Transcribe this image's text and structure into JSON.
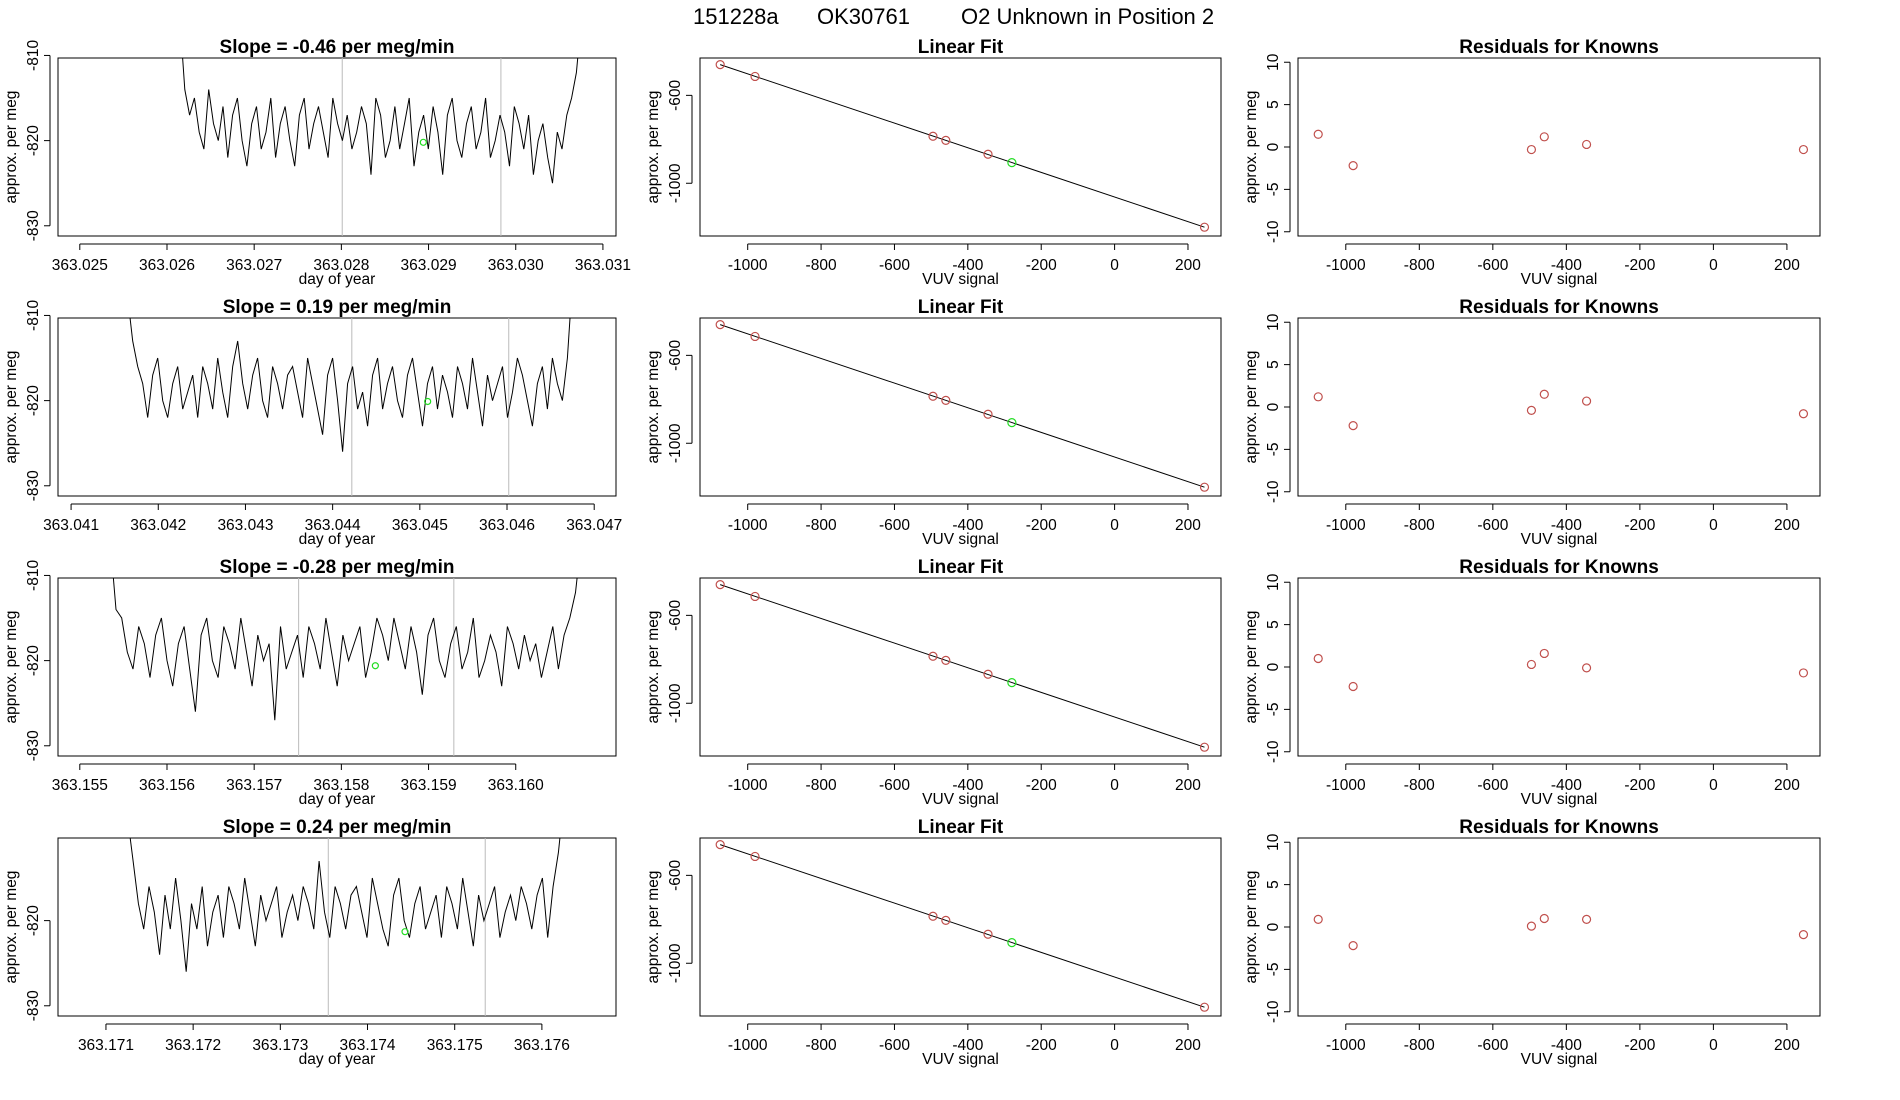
{
  "title": {
    "run": "151228a",
    "tank": "OK30761",
    "description": "O2 Unknown in Position  2"
  },
  "colors": {
    "trace": "#000000",
    "point": "#c0504d",
    "highlight": "#22dd22",
    "vline": "#bbbbbb"
  },
  "chart_data": [
    {
      "type": "line",
      "row": 0,
      "panel": "timeseries",
      "title_prefix": "Slope = ",
      "slope": " -0.46",
      "title_suffix": "  per meg/min",
      "xlabel": "day of year",
      "ylabel": "approx. per meg",
      "xlim": [
        363.02475,
        363.03115
      ],
      "ylim": [
        -831.2,
        -810.3
      ],
      "xticks": [
        "363.025",
        "363.026",
        "363.027",
        "363.028",
        "363.029",
        "363.030",
        "363.031"
      ],
      "yticks": [
        "-810",
        "-820",
        "-830"
      ],
      "vlines": [
        363.02801,
        363.02983
      ],
      "highlight": {
        "x": 363.02894,
        "y": -820.2
      },
      "series": {
        "name": "trace",
        "x_start": 363.02615,
        "x_end": 363.03075,
        "values": [
          -806,
          -814,
          -817,
          -815,
          -819,
          -821,
          -814,
          -818,
          -820,
          -816,
          -822,
          -817,
          -815,
          -820,
          -823,
          -818,
          -816,
          -821,
          -819,
          -815,
          -822,
          -818,
          -816,
          -820,
          -823,
          -817,
          -815,
          -821,
          -818,
          -816,
          -819,
          -822,
          -815,
          -818,
          -820,
          -817,
          -821,
          -819,
          -816,
          -818,
          -824,
          -815,
          -817,
          -822,
          -820,
          -816,
          -821,
          -818,
          -815,
          -823,
          -819,
          -817,
          -821,
          -816,
          -819,
          -824,
          -817,
          -815,
          -820,
          -822,
          -818,
          -816,
          -821,
          -819,
          -815,
          -822,
          -820,
          -817,
          -819,
          -823,
          -816,
          -818,
          -821,
          -817,
          -824,
          -820,
          -818,
          -822,
          -825,
          -819,
          -821,
          -817,
          -815,
          -812,
          -806
        ]
      }
    },
    {
      "type": "line",
      "row": 1,
      "panel": "timeseries",
      "title_prefix": "Slope = ",
      "slope": " 0.19",
      "title_suffix": "  per meg/min",
      "xlabel": "day of year",
      "ylabel": "approx. per meg",
      "xlim": [
        363.04085,
        363.04725
      ],
      "ylim": [
        -831.2,
        -810.3
      ],
      "xticks": [
        "363.041",
        "363.042",
        "363.043",
        "363.044",
        "363.045",
        "363.046",
        "363.047"
      ],
      "yticks": [
        "-810",
        "-820",
        "-830"
      ],
      "vlines": [
        363.04422,
        363.04602
      ],
      "highlight": {
        "x": 363.04509,
        "y": -820.1
      },
      "series": {
        "name": "trace",
        "x_start": 363.04165,
        "x_end": 363.04675,
        "values": [
          -808,
          -813,
          -816,
          -818,
          -822,
          -817,
          -815,
          -820,
          -822,
          -818,
          -816,
          -821,
          -819,
          -817,
          -822,
          -816,
          -818,
          -821,
          -815,
          -819,
          -822,
          -816,
          -813,
          -818,
          -821,
          -817,
          -815,
          -820,
          -822,
          -816,
          -818,
          -821,
          -817,
          -816,
          -819,
          -822,
          -815,
          -818,
          -821,
          -824,
          -817,
          -815,
          -820,
          -826,
          -818,
          -816,
          -821,
          -819,
          -823,
          -817,
          -815,
          -821,
          -818,
          -816,
          -820,
          -822,
          -817,
          -815,
          -819,
          -823,
          -818,
          -816,
          -821,
          -817,
          -819,
          -822,
          -816,
          -818,
          -821,
          -815,
          -819,
          -823,
          -817,
          -820,
          -818,
          -816,
          -822,
          -819,
          -815,
          -817,
          -820,
          -823,
          -818,
          -816,
          -821,
          -815,
          -818,
          -820,
          -815,
          -806
        ]
      }
    },
    {
      "type": "line",
      "row": 2,
      "panel": "timeseries",
      "title_prefix": "Slope = ",
      "slope": " -0.28",
      "title_suffix": "  per meg/min",
      "xlabel": "day of year",
      "ylabel": "approx. per meg",
      "xlim": [
        363.15475,
        363.16115
      ],
      "ylim": [
        -831.2,
        -810.3
      ],
      "xticks": [
        "363.155",
        "363.156",
        "363.157",
        "363.158",
        "363.159",
        "363.160"
      ],
      "yticks": [
        "-810",
        "-820",
        "-830"
      ],
      "vlines": [
        363.15751,
        363.15929
      ],
      "highlight": {
        "x": 363.15839,
        "y": -820.6
      },
      "series": {
        "name": "trace",
        "x_start": 363.15535,
        "x_end": 363.16075,
        "values": [
          -806,
          -814,
          -815,
          -819,
          -821,
          -816,
          -818,
          -822,
          -817,
          -815,
          -820,
          -823,
          -818,
          -816,
          -821,
          -826,
          -817,
          -815,
          -820,
          -822,
          -816,
          -818,
          -821,
          -815,
          -819,
          -823,
          -817,
          -820,
          -818,
          -827,
          -816,
          -821,
          -819,
          -817,
          -822,
          -816,
          -818,
          -821,
          -815,
          -819,
          -823,
          -817,
          -820,
          -818,
          -816,
          -822,
          -819,
          -815,
          -817,
          -820,
          -815,
          -818,
          -821,
          -816,
          -819,
          -824,
          -817,
          -815,
          -820,
          -822,
          -818,
          -816,
          -821,
          -819,
          -815,
          -822,
          -820,
          -817,
          -819,
          -823,
          -816,
          -818,
          -821,
          -817,
          -820,
          -818,
          -822,
          -819,
          -816,
          -821,
          -817,
          -815,
          -812,
          -806
        ]
      }
    },
    {
      "type": "line",
      "row": 3,
      "panel": "timeseries",
      "title_prefix": "Slope = ",
      "slope": " 0.24",
      "title_suffix": "  per meg/min",
      "xlabel": "day of year",
      "ylabel": "approx. per meg",
      "xlim": [
        363.17045,
        363.17685
      ],
      "ylim": [
        -831.2,
        -810.3
      ],
      "xticks": [
        "363.171",
        "363.172",
        "363.173",
        "363.174",
        "363.175",
        "363.176"
      ],
      "yticks": [
        "-820",
        "-830"
      ],
      "vlines": [
        363.17355,
        363.17535
      ],
      "highlight": {
        "x": 363.17443,
        "y": -821.3
      },
      "series": {
        "name": "trace",
        "x_start": 363.17125,
        "x_end": 363.17625,
        "values": [
          -808,
          -813,
          -818,
          -821,
          -816,
          -819,
          -824,
          -817,
          -821,
          -815,
          -820,
          -826,
          -818,
          -821,
          -816,
          -823,
          -819,
          -817,
          -822,
          -816,
          -818,
          -821,
          -815,
          -819,
          -823,
          -817,
          -820,
          -818,
          -816,
          -822,
          -819,
          -817,
          -820,
          -816,
          -818,
          -821,
          -813,
          -819,
          -822,
          -816,
          -818,
          -821,
          -817,
          -816,
          -819,
          -822,
          -815,
          -818,
          -821,
          -823,
          -817,
          -815,
          -820,
          -822,
          -818,
          -816,
          -821,
          -819,
          -817,
          -822,
          -816,
          -818,
          -821,
          -815,
          -819,
          -823,
          -817,
          -820,
          -818,
          -816,
          -822,
          -819,
          -817,
          -820,
          -816,
          -818,
          -821,
          -817,
          -815,
          -822,
          -816,
          -812,
          -806
        ]
      }
    },
    {
      "type": "scatter",
      "row": 0,
      "panel": "fit",
      "title": "Linear Fit",
      "xlabel": "VUV signal",
      "ylabel": "approx. per meg",
      "xlim": [
        -1130,
        290
      ],
      "ylim": [
        -1240,
        -430
      ],
      "xticks": [
        "-1000",
        "-800",
        "-600",
        "-400",
        "-200",
        "0",
        "200"
      ],
      "yticks": [
        "-600",
        "-1000"
      ],
      "fit_line": {
        "x": [
          -1075,
          245
        ],
        "y": [
          -460,
          -1200
        ]
      },
      "points": {
        "x": [
          -1075,
          -980,
          -495,
          -460,
          -345,
          245
        ],
        "y": [
          -460,
          -514,
          -786,
          -805,
          -868,
          -1200
        ]
      },
      "highlight": {
        "x": -280,
        "y": -906
      }
    },
    {
      "type": "scatter",
      "row": 1,
      "panel": "fit",
      "title": "Linear Fit",
      "xlabel": "VUV signal",
      "ylabel": "approx. per meg",
      "xlim": [
        -1130,
        290
      ],
      "ylim": [
        -1240,
        -430
      ],
      "xticks": [
        "-1000",
        "-800",
        "-600",
        "-400",
        "-200",
        "0",
        "200"
      ],
      "yticks": [
        "-600",
        "-1000"
      ],
      "fit_line": {
        "x": [
          -1075,
          245
        ],
        "y": [
          -460,
          -1200
        ]
      },
      "points": {
        "x": [
          -1075,
          -980,
          -495,
          -460,
          -345,
          245
        ],
        "y": [
          -460,
          -514,
          -786,
          -805,
          -868,
          -1200
        ]
      },
      "highlight": {
        "x": -280,
        "y": -906
      }
    },
    {
      "type": "scatter",
      "row": 2,
      "panel": "fit",
      "title": "Linear Fit",
      "xlabel": "VUV signal",
      "ylabel": "approx. per meg",
      "xlim": [
        -1130,
        290
      ],
      "ylim": [
        -1240,
        -430
      ],
      "xticks": [
        "-1000",
        "-800",
        "-600",
        "-400",
        "-200",
        "0",
        "200"
      ],
      "yticks": [
        "-600",
        "-1000"
      ],
      "fit_line": {
        "x": [
          -1075,
          245
        ],
        "y": [
          -460,
          -1200
        ]
      },
      "points": {
        "x": [
          -1075,
          -980,
          -495,
          -460,
          -345,
          245
        ],
        "y": [
          -460,
          -514,
          -786,
          -805,
          -868,
          -1200
        ]
      },
      "highlight": {
        "x": -280,
        "y": -906
      }
    },
    {
      "type": "scatter",
      "row": 3,
      "panel": "fit",
      "title": "Linear Fit",
      "xlabel": "VUV signal",
      "ylabel": "approx. per meg",
      "xlim": [
        -1130,
        290
      ],
      "ylim": [
        -1240,
        -430
      ],
      "xticks": [
        "-1000",
        "-800",
        "-600",
        "-400",
        "-200",
        "0",
        "200"
      ],
      "yticks": [
        "-600",
        "-1000"
      ],
      "fit_line": {
        "x": [
          -1075,
          245
        ],
        "y": [
          -460,
          -1200
        ]
      },
      "points": {
        "x": [
          -1075,
          -980,
          -495,
          -460,
          -345,
          245
        ],
        "y": [
          -460,
          -514,
          -786,
          -805,
          -868,
          -1200
        ]
      },
      "highlight": {
        "x": -280,
        "y": -906
      }
    },
    {
      "type": "scatter",
      "row": 0,
      "panel": "residuals",
      "title": "Residuals for Knowns",
      "xlabel": "VUV signal",
      "ylabel": "approx. per meg",
      "xlim": [
        -1130,
        290
      ],
      "ylim": [
        -10.5,
        10.5
      ],
      "xticks": [
        "-1000",
        "-800",
        "-600",
        "-400",
        "-200",
        "0",
        "200"
      ],
      "yticks": [
        "10",
        "5",
        "0",
        "-5",
        "-10"
      ],
      "points": {
        "x": [
          -1075,
          -980,
          -495,
          -460,
          -345,
          245
        ],
        "y": [
          1.5,
          -2.2,
          -0.3,
          1.2,
          0.3,
          -0.3
        ]
      }
    },
    {
      "type": "scatter",
      "row": 1,
      "panel": "residuals",
      "title": "Residuals for Knowns",
      "xlabel": "VUV signal",
      "ylabel": "approx. per meg",
      "xlim": [
        -1130,
        290
      ],
      "ylim": [
        -10.5,
        10.5
      ],
      "xticks": [
        "-1000",
        "-800",
        "-600",
        "-400",
        "-200",
        "0",
        "200"
      ],
      "yticks": [
        "10",
        "5",
        "0",
        "-5",
        "-10"
      ],
      "points": {
        "x": [
          -1075,
          -980,
          -495,
          -460,
          -345,
          245
        ],
        "y": [
          1.2,
          -2.2,
          -0.4,
          1.5,
          0.7,
          -0.8
        ]
      }
    },
    {
      "type": "scatter",
      "row": 2,
      "panel": "residuals",
      "title": "Residuals for Knowns",
      "xlabel": "VUV signal",
      "ylabel": "approx. per meg",
      "xlim": [
        -1130,
        290
      ],
      "ylim": [
        -10.5,
        10.5
      ],
      "xticks": [
        "-1000",
        "-800",
        "-600",
        "-400",
        "-200",
        "0",
        "200"
      ],
      "yticks": [
        "10",
        "5",
        "0",
        "-5",
        "-10"
      ],
      "points": {
        "x": [
          -1075,
          -980,
          -495,
          -460,
          -345,
          245
        ],
        "y": [
          1.0,
          -2.3,
          0.3,
          1.6,
          -0.1,
          -0.7
        ]
      }
    },
    {
      "type": "scatter",
      "row": 3,
      "panel": "residuals",
      "title": "Residuals for Knowns",
      "xlabel": "VUV signal",
      "ylabel": "approx. per meg",
      "xlim": [
        -1130,
        290
      ],
      "ylim": [
        -10.5,
        10.5
      ],
      "xticks": [
        "-1000",
        "-800",
        "-600",
        "-400",
        "-200",
        "0",
        "200"
      ],
      "yticks": [
        "10",
        "5",
        "0",
        "-5",
        "-10"
      ],
      "points": {
        "x": [
          -1075,
          -980,
          -495,
          -460,
          -345,
          245
        ],
        "y": [
          0.9,
          -2.2,
          0.1,
          1.0,
          0.9,
          -0.9
        ]
      }
    }
  ]
}
